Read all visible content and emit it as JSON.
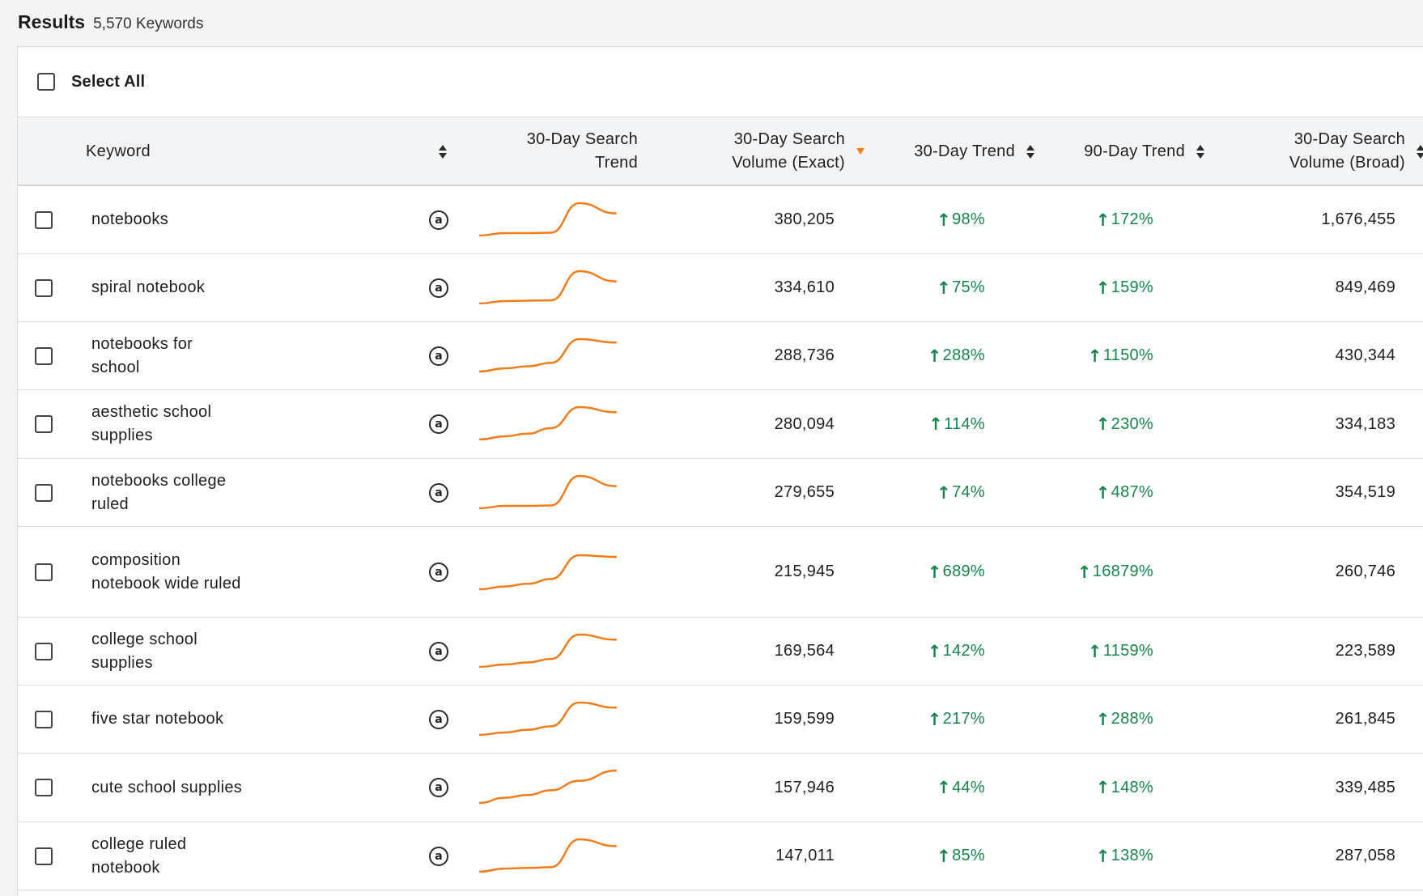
{
  "results": {
    "title": "Results",
    "count_label": "5,570 Keywords"
  },
  "select_all_label": "Select All",
  "columns": {
    "keyword": "Keyword",
    "search_trend": "30-Day Search Trend",
    "search_volume_exact": "30-Day Search Volume (Exact)",
    "trend_30": "30-Day Trend",
    "trend_90": "90-Day Trend",
    "search_volume_broad": "30-Day Search Volume (Broad)"
  },
  "sorted_column": "search_volume_exact",
  "sort_direction": "descending",
  "icons": {
    "amazon": "amazon-icon",
    "trend_arrow": "arrow-up-icon"
  },
  "colors": {
    "sparkline": "#f07c1a",
    "positive_trend": "#17834d",
    "sort_active": "#f07c1a"
  },
  "rows": [
    {
      "keyword": "notebooks",
      "exact": "380,205",
      "trend30": "98%",
      "trend90": "172%",
      "broad": "1,676,455",
      "spark": [
        0.05,
        0.12,
        0.12,
        0.13,
        1.0,
        0.7
      ]
    },
    {
      "keyword": "spiral notebook",
      "exact": "334,610",
      "trend30": "75%",
      "trend90": "159%",
      "broad": "849,469",
      "spark": [
        0.05,
        0.12,
        0.13,
        0.14,
        1.0,
        0.7
      ]
    },
    {
      "keyword": "notebooks for school",
      "exact": "288,736",
      "trend30": "288%",
      "trend90": "1150%",
      "broad": "430,344",
      "spark": [
        0.05,
        0.14,
        0.2,
        0.3,
        1.0,
        0.9
      ]
    },
    {
      "keyword": "aesthetic school supplies",
      "exact": "280,094",
      "trend30": "114%",
      "trend90": "230%",
      "broad": "334,183",
      "spark": [
        0.05,
        0.14,
        0.22,
        0.38,
        1.0,
        0.85
      ]
    },
    {
      "keyword": "notebooks college ruled",
      "exact": "279,655",
      "trend30": "74%",
      "trend90": "487%",
      "broad": "354,519",
      "spark": [
        0.05,
        0.12,
        0.12,
        0.13,
        1.0,
        0.7
      ]
    },
    {
      "keyword": "composition notebook wide ruled",
      "exact": "215,945",
      "trend30": "689%",
      "trend90": "16879%",
      "broad": "260,746",
      "spark": [
        0.0,
        0.08,
        0.16,
        0.3,
        1.0,
        0.95
      ]
    },
    {
      "keyword": "college school supplies",
      "exact": "169,564",
      "trend30": "142%",
      "trend90": "1159%",
      "broad": "223,589",
      "spark": [
        0.05,
        0.12,
        0.18,
        0.28,
        1.0,
        0.85
      ]
    },
    {
      "keyword": "five star notebook",
      "exact": "159,599",
      "trend30": "217%",
      "trend90": "288%",
      "broad": "261,845",
      "spark": [
        0.05,
        0.12,
        0.2,
        0.3,
        1.0,
        0.85
      ]
    },
    {
      "keyword": "cute school supplies",
      "exact": "157,946",
      "trend30": "44%",
      "trend90": "148%",
      "broad": "339,485",
      "spark": [
        0.05,
        0.2,
        0.28,
        0.42,
        0.7,
        1.0
      ]
    },
    {
      "keyword": "college ruled notebook",
      "exact": "147,011",
      "trend30": "85%",
      "trend90": "138%",
      "broad": "287,058",
      "spark": [
        0.05,
        0.14,
        0.16,
        0.18,
        1.0,
        0.8
      ]
    }
  ]
}
